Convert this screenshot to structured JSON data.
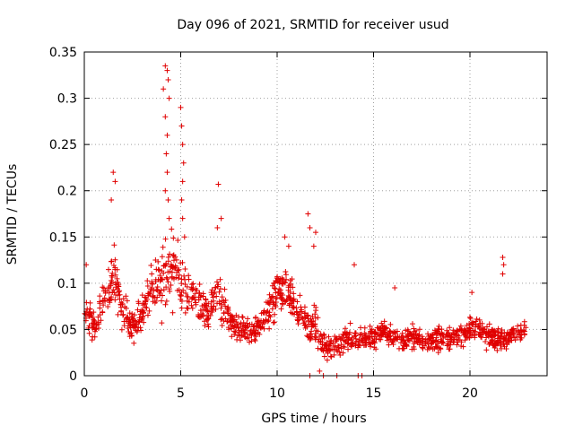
{
  "colors": {
    "series": "#e00000",
    "grid": "#a0a0a0",
    "frame": "#000000"
  },
  "chart_data": {
    "type": "scatter",
    "title": "Day 096 of 2021, SRMTID for receiver usud",
    "xlabel": "GPS time / hours",
    "ylabel": "SRMTID / TECUs",
    "xlim": [
      0,
      24
    ],
    "ylim": [
      0,
      0.35
    ],
    "grid": true,
    "marker": "plus",
    "x_tick_labels": [
      "0",
      "5",
      "10",
      "15",
      "20"
    ],
    "x_tick_values": [
      0,
      5,
      10,
      15,
      20
    ],
    "y_tick_labels": [
      "0",
      "0.05",
      "0.1",
      "0.15",
      "0.2",
      "0.25",
      "0.3",
      "0.35"
    ],
    "y_tick_values": [
      0,
      0.05,
      0.1,
      0.15,
      0.2,
      0.25,
      0.3,
      0.35
    ],
    "series": [
      {
        "name": "SRMTID",
        "profile_hours": [
          0,
          0.5,
          1,
          1.5,
          2,
          2.5,
          3,
          3.5,
          4,
          4.5,
          5,
          5.5,
          6,
          6.5,
          7,
          7.5,
          8,
          8.5,
          9,
          9.5,
          10,
          10.5,
          11,
          11.5,
          12,
          12.5,
          13,
          13.5,
          14,
          14.5,
          15,
          15.5,
          16,
          16.5,
          17,
          17.5,
          18,
          18.5,
          19,
          19.5,
          20,
          20.5,
          21,
          21.5,
          22,
          22.5,
          22.9
        ],
        "profile_center": [
          0.07,
          0.05,
          0.08,
          0.11,
          0.07,
          0.05,
          0.07,
          0.09,
          0.11,
          0.12,
          0.1,
          0.09,
          0.08,
          0.07,
          0.09,
          0.06,
          0.05,
          0.05,
          0.05,
          0.07,
          0.09,
          0.1,
          0.07,
          0.06,
          0.05,
          0.03,
          0.03,
          0.04,
          0.04,
          0.04,
          0.04,
          0.05,
          0.04,
          0.04,
          0.04,
          0.04,
          0.04,
          0.04,
          0.04,
          0.04,
          0.05,
          0.05,
          0.04,
          0.04,
          0.04,
          0.05,
          0.05
        ],
        "profile_spread": [
          0.03,
          0.03,
          0.03,
          0.05,
          0.03,
          0.03,
          0.03,
          0.04,
          0.06,
          0.06,
          0.05,
          0.04,
          0.03,
          0.03,
          0.04,
          0.02,
          0.02,
          0.02,
          0.02,
          0.03,
          0.04,
          0.04,
          0.03,
          0.03,
          0.03,
          0.02,
          0.02,
          0.02,
          0.02,
          0.02,
          0.02,
          0.02,
          0.02,
          0.02,
          0.02,
          0.02,
          0.02,
          0.02,
          0.02,
          0.02,
          0.02,
          0.02,
          0.02,
          0.02,
          0.02,
          0.02,
          0.02
        ],
        "n_samples": 1400,
        "peaks": [
          {
            "x": 0.1,
            "y": 0.12
          },
          {
            "x": 1.5,
            "y": 0.22
          },
          {
            "x": 1.6,
            "y": 0.21
          },
          {
            "x": 1.4,
            "y": 0.19
          },
          {
            "x": 4.2,
            "y": 0.335
          },
          {
            "x": 4.3,
            "y": 0.33
          },
          {
            "x": 4.35,
            "y": 0.32
          },
          {
            "x": 4.1,
            "y": 0.31
          },
          {
            "x": 4.4,
            "y": 0.3
          },
          {
            "x": 4.2,
            "y": 0.28
          },
          {
            "x": 4.3,
            "y": 0.26
          },
          {
            "x": 4.25,
            "y": 0.24
          },
          {
            "x": 4.3,
            "y": 0.22
          },
          {
            "x": 4.2,
            "y": 0.2
          },
          {
            "x": 4.35,
            "y": 0.19
          },
          {
            "x": 4.4,
            "y": 0.17
          },
          {
            "x": 5.0,
            "y": 0.29
          },
          {
            "x": 5.05,
            "y": 0.27
          },
          {
            "x": 5.1,
            "y": 0.25
          },
          {
            "x": 5.15,
            "y": 0.23
          },
          {
            "x": 5.1,
            "y": 0.21
          },
          {
            "x": 5.05,
            "y": 0.19
          },
          {
            "x": 5.1,
            "y": 0.17
          },
          {
            "x": 5.2,
            "y": 0.15
          },
          {
            "x": 6.95,
            "y": 0.207
          },
          {
            "x": 7.1,
            "y": 0.17
          },
          {
            "x": 6.9,
            "y": 0.16
          },
          {
            "x": 10.4,
            "y": 0.15
          },
          {
            "x": 10.6,
            "y": 0.14
          },
          {
            "x": 11.6,
            "y": 0.175
          },
          {
            "x": 11.7,
            "y": 0.16
          },
          {
            "x": 12.0,
            "y": 0.155
          },
          {
            "x": 11.9,
            "y": 0.14
          },
          {
            "x": 14.0,
            "y": 0.12
          },
          {
            "x": 21.7,
            "y": 0.128
          },
          {
            "x": 21.75,
            "y": 0.12
          },
          {
            "x": 21.7,
            "y": 0.11
          },
          {
            "x": 16.1,
            "y": 0.095
          },
          {
            "x": 20.1,
            "y": 0.09
          },
          {
            "x": 11.7,
            "y": 0.0
          },
          {
            "x": 12.4,
            "y": 0.0
          },
          {
            "x": 13.1,
            "y": 0.0
          },
          {
            "x": 14.2,
            "y": 0.0
          },
          {
            "x": 14.4,
            "y": 0.0
          },
          {
            "x": 12.2,
            "y": 0.005
          }
        ]
      }
    ]
  }
}
